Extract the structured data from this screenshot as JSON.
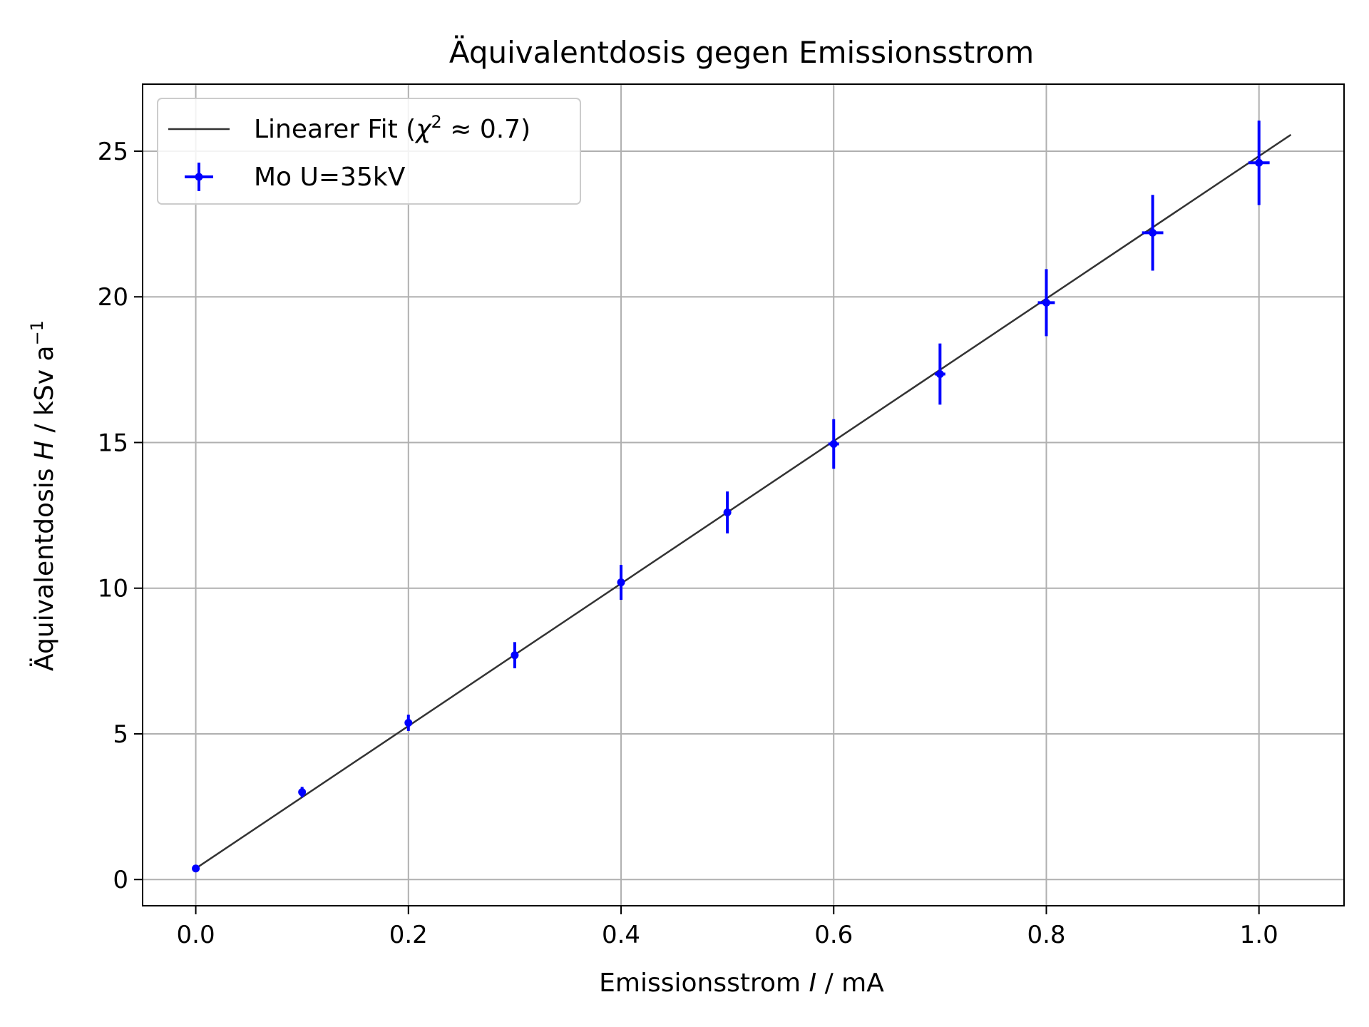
{
  "chart_data": {
    "type": "scatter",
    "title": "Äquivalentdosis gegen Emissionsstrom",
    "xlabel": {
      "pre": "Emissionsstrom ",
      "sym": "I",
      "post": " / mA"
    },
    "ylabel": {
      "pre": "Äquivalentdosis ",
      "sym": "H",
      "post": " / kSv a",
      "sup": "−1"
    },
    "xlim": [
      -0.05,
      1.08
    ],
    "ylim": [
      -0.9,
      27.3
    ],
    "x_ticks": [
      0.0,
      0.2,
      0.4,
      0.6,
      0.8,
      1.0
    ],
    "x_tick_labels": [
      "0.0",
      "0.2",
      "0.4",
      "0.6",
      "0.8",
      "1.0"
    ],
    "y_ticks": [
      0,
      5,
      10,
      15,
      20,
      25
    ],
    "y_tick_labels": [
      "0",
      "5",
      "10",
      "15",
      "20",
      "25"
    ],
    "grid": true,
    "legend_position": "upper-left",
    "fit": {
      "label_pre": "Linearer Fit (",
      "label_chi": "χ",
      "label_sup": "2",
      "label_post": " ≈ 0.7)",
      "x_range": [
        0.0,
        1.03
      ],
      "intercept": 0.38,
      "slope": 24.45,
      "color": "#333333"
    },
    "series": [
      {
        "name": "Mo U=35kV",
        "color": "#0000ff",
        "x": [
          0.0,
          0.1,
          0.2,
          0.3,
          0.4,
          0.5,
          0.6,
          0.7,
          0.8,
          0.9,
          1.0
        ],
        "y": [
          0.38,
          3.0,
          5.38,
          7.7,
          10.2,
          12.6,
          14.95,
          17.35,
          19.8,
          22.2,
          24.6
        ],
        "yerr": [
          0.05,
          0.18,
          0.28,
          0.45,
          0.6,
          0.72,
          0.85,
          1.05,
          1.15,
          1.3,
          1.45
        ],
        "xerr": [
          0.0,
          0.0,
          0.0,
          0.0,
          0.0,
          0.0,
          0.005,
          0.005,
          0.008,
          0.01,
          0.01
        ]
      }
    ]
  }
}
